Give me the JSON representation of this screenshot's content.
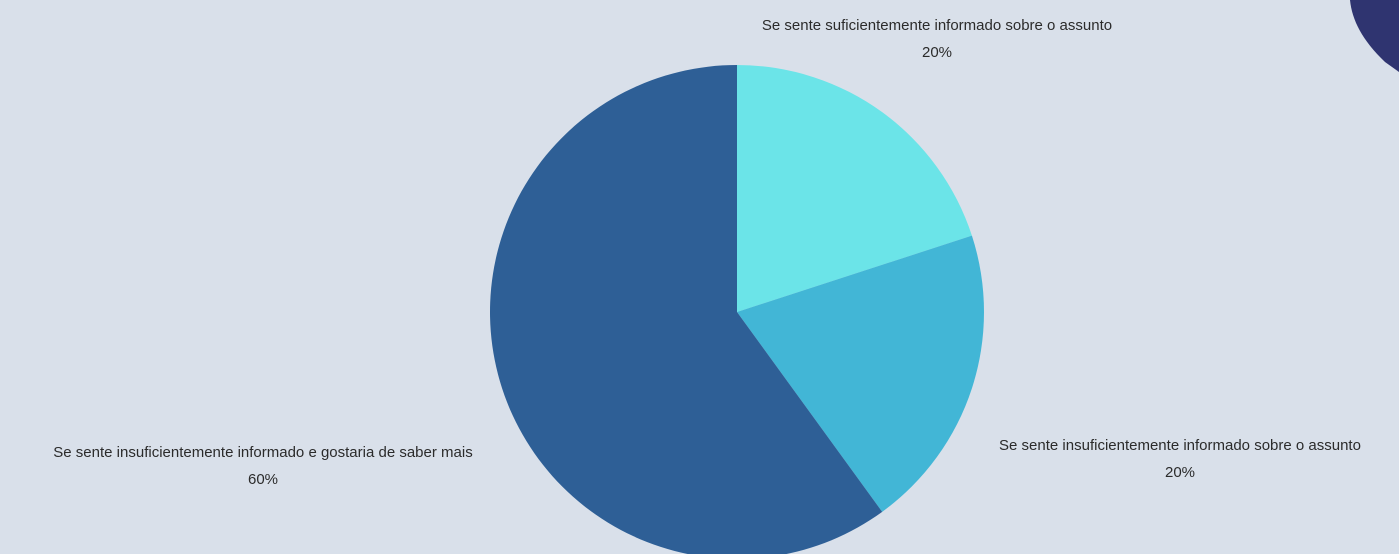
{
  "chart_data": {
    "type": "pie",
    "categories": [
      "Se sente suficientemente informado sobre o assunto",
      "Se sente insuficientemente informado sobre o assunto",
      "Se sente insuficientemente informado e gostaria de saber mais"
    ],
    "values": [
      20,
      20,
      60
    ],
    "value_labels": [
      "20%",
      "20%",
      "60%"
    ],
    "colors": [
      "#6be4e8",
      "#42b6d6",
      "#2e5f96"
    ]
  }
}
